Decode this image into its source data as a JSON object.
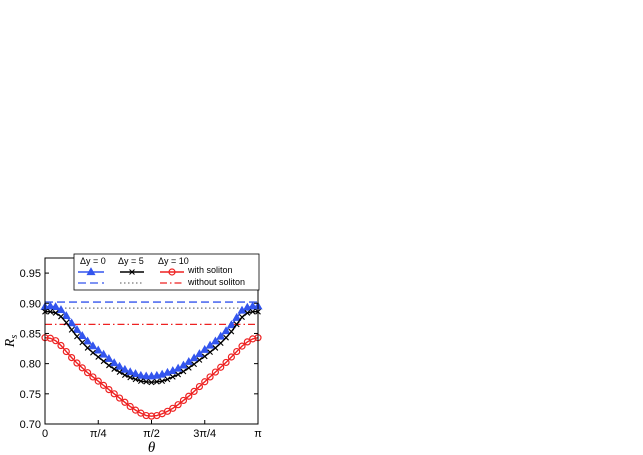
{
  "chart_data": {
    "type": "line",
    "xlabel": "θ",
    "ylabel": "R_s",
    "ylabel_main": "R",
    "ylabel_sub": "s",
    "xlim": [
      0,
      3.14159
    ],
    "ylim": [
      0.7,
      0.975
    ],
    "x_ticks": [
      0,
      0.7854,
      1.5708,
      2.3562,
      3.14159
    ],
    "x_tick_labels": [
      "0",
      "π/4",
      "π/2",
      "3π/4",
      "π"
    ],
    "y_ticks": [
      0.7,
      0.75,
      0.8,
      0.85,
      0.9,
      0.95
    ],
    "y_tick_labels": [
      "0.70",
      "0.75",
      "0.80",
      "0.85",
      "0.90",
      "0.95"
    ],
    "legend": {
      "location": "top",
      "column_headers": [
        "Δy = 0",
        "Δy = 5",
        "Δy = 10"
      ],
      "row_labels": [
        "with soliton",
        "without soliton"
      ]
    },
    "series": [
      {
        "name": "Δy = 0, with soliton",
        "color": "#3355ee",
        "line_style": "solid",
        "marker": "triangle",
        "x": [
          0,
          0.0785,
          0.1571,
          0.2356,
          0.3142,
          0.3927,
          0.4712,
          0.5498,
          0.6283,
          0.7069,
          0.7854,
          0.8639,
          0.9425,
          1.021,
          1.0996,
          1.1781,
          1.2566,
          1.3352,
          1.4137,
          1.4923,
          1.5708,
          1.6493,
          1.7279,
          1.8064,
          1.885,
          1.9635,
          2.042,
          2.1206,
          2.1991,
          2.2777,
          2.3562,
          2.4347,
          2.5133,
          2.5918,
          2.6704,
          2.7489,
          2.8274,
          2.906,
          2.9845,
          3.0631,
          3.1416
        ],
        "y": [
          0.894,
          0.895,
          0.894,
          0.889,
          0.879,
          0.867,
          0.856,
          0.846,
          0.837,
          0.829,
          0.822,
          0.815,
          0.808,
          0.801,
          0.795,
          0.79,
          0.786,
          0.783,
          0.78,
          0.779,
          0.779,
          0.78,
          0.782,
          0.785,
          0.788,
          0.792,
          0.797,
          0.803,
          0.809,
          0.816,
          0.823,
          0.83,
          0.837,
          0.845,
          0.854,
          0.864,
          0.876,
          0.888,
          0.893,
          0.895,
          0.895
        ]
      },
      {
        "name": "Δy = 5, with soliton",
        "color": "#000000",
        "line_style": "solid",
        "marker": "x",
        "x": [
          0,
          0.0785,
          0.1571,
          0.2356,
          0.3142,
          0.3927,
          0.4712,
          0.5498,
          0.6283,
          0.7069,
          0.7854,
          0.8639,
          0.9425,
          1.021,
          1.0996,
          1.1781,
          1.2566,
          1.3352,
          1.4137,
          1.4923,
          1.5708,
          1.6493,
          1.7279,
          1.8064,
          1.885,
          1.9635,
          2.042,
          2.1206,
          2.1991,
          2.2777,
          2.3562,
          2.4347,
          2.5133,
          2.5918,
          2.6704,
          2.7489,
          2.8274,
          2.906,
          2.9845,
          3.0631,
          3.1416
        ],
        "y": [
          0.886,
          0.886,
          0.884,
          0.878,
          0.868,
          0.856,
          0.845,
          0.835,
          0.826,
          0.818,
          0.811,
          0.804,
          0.797,
          0.791,
          0.786,
          0.781,
          0.777,
          0.774,
          0.771,
          0.77,
          0.769,
          0.77,
          0.771,
          0.774,
          0.778,
          0.782,
          0.787,
          0.793,
          0.799,
          0.806,
          0.812,
          0.819,
          0.826,
          0.834,
          0.843,
          0.853,
          0.865,
          0.877,
          0.884,
          0.886,
          0.886
        ]
      },
      {
        "name": "Δy = 10, with soliton",
        "color": "#ee2222",
        "line_style": "solid",
        "marker": "circle",
        "x": [
          0,
          0.0785,
          0.1571,
          0.2356,
          0.3142,
          0.3927,
          0.4712,
          0.5498,
          0.6283,
          0.7069,
          0.7854,
          0.8639,
          0.9425,
          1.021,
          1.0996,
          1.1781,
          1.2566,
          1.3352,
          1.4137,
          1.4923,
          1.5708,
          1.6493,
          1.7279,
          1.8064,
          1.885,
          1.9635,
          2.042,
          2.1206,
          2.1991,
          2.2777,
          2.3562,
          2.4347,
          2.5133,
          2.5918,
          2.6704,
          2.7489,
          2.8274,
          2.906,
          2.9845,
          3.0631,
          3.1416
        ],
        "y": [
          0.843,
          0.842,
          0.838,
          0.83,
          0.82,
          0.81,
          0.801,
          0.793,
          0.785,
          0.778,
          0.771,
          0.764,
          0.757,
          0.75,
          0.743,
          0.736,
          0.729,
          0.723,
          0.718,
          0.714,
          0.713,
          0.714,
          0.717,
          0.721,
          0.726,
          0.732,
          0.739,
          0.746,
          0.754,
          0.762,
          0.77,
          0.778,
          0.786,
          0.794,
          0.802,
          0.811,
          0.82,
          0.829,
          0.836,
          0.841,
          0.843
        ]
      },
      {
        "name": "Δy = 0, without soliton",
        "color": "#3355ee",
        "line_style": "dashed",
        "constant": 0.902
      },
      {
        "name": "Δy = 5, without soliton",
        "color": "#777777",
        "line_style": "dotted",
        "constant": 0.892
      },
      {
        "name": "Δy = 10, without soliton",
        "color": "#ee2222",
        "line_style": "dashdot",
        "constant": 0.865
      }
    ]
  }
}
